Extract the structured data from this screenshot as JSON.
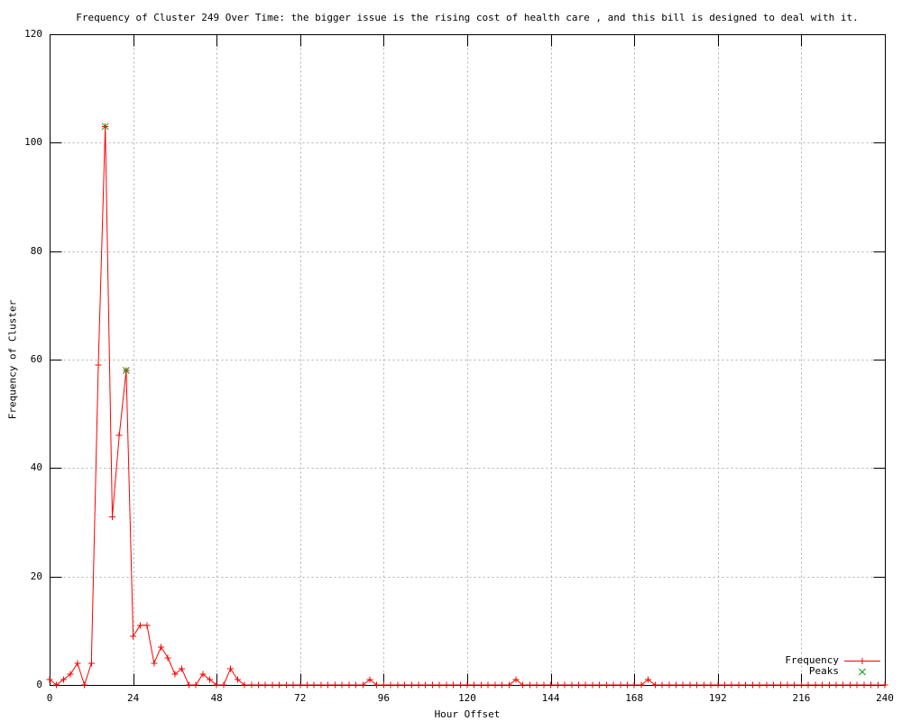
{
  "title": "Frequency of Cluster 249 Over Time: the bigger issue is the rising cost of health care , and this bill is designed to deal with it.",
  "x_axis": {
    "label": "Hour Offset",
    "ticks": [
      0,
      24,
      48,
      72,
      96,
      120,
      144,
      168,
      192,
      216,
      240
    ]
  },
  "y_axis": {
    "label": "Frequency of Cluster",
    "ticks": [
      0,
      20,
      40,
      60,
      80,
      100,
      120
    ]
  },
  "legend": [
    {
      "label": "Frequency",
      "color": "#ff0000",
      "marker": "plus-line"
    },
    {
      "label": "Peaks",
      "color": "#00a000",
      "marker": "cross"
    }
  ],
  "chart_data": {
    "type": "line",
    "title": "Frequency of Cluster 249 Over Time: the bigger issue is the rising cost of health care , and this bill is designed to deal with it.",
    "xlabel": "Hour Offset",
    "ylabel": "Frequency of Cluster",
    "xlim": [
      0,
      240
    ],
    "ylim": [
      0,
      120
    ],
    "grid": true,
    "grid_color": "#b0b0b0",
    "legend_position": "bottom-right",
    "series": [
      {
        "name": "Frequency",
        "style": "linespoints",
        "marker": "+",
        "color": "#ff0000",
        "x": [
          0,
          2,
          4,
          6,
          8,
          10,
          12,
          14,
          16,
          18,
          20,
          22,
          24,
          26,
          28,
          30,
          32,
          34,
          36,
          38,
          40,
          42,
          44,
          46,
          48,
          50,
          52,
          54,
          56,
          58,
          60,
          62,
          64,
          66,
          68,
          70,
          72,
          74,
          76,
          78,
          80,
          82,
          84,
          86,
          88,
          90,
          92,
          94,
          96,
          98,
          100,
          102,
          104,
          106,
          108,
          110,
          112,
          114,
          116,
          118,
          120,
          122,
          124,
          126,
          128,
          130,
          132,
          134,
          136,
          138,
          140,
          142,
          144,
          146,
          148,
          150,
          152,
          154,
          156,
          158,
          160,
          162,
          164,
          166,
          168,
          170,
          172,
          174,
          176,
          178,
          180,
          182,
          184,
          186,
          188,
          190,
          192,
          194,
          196,
          198,
          200,
          202,
          204,
          206,
          208,
          210,
          212,
          214,
          216,
          218,
          220,
          222,
          224,
          226,
          228,
          230,
          232,
          234,
          236,
          238,
          240
        ],
        "y": [
          1,
          0,
          1,
          2,
          4,
          0,
          4,
          59,
          103,
          31,
          46,
          58,
          9,
          11,
          11,
          4,
          7,
          5,
          2,
          3,
          0,
          0,
          2,
          1,
          0,
          0,
          3,
          1,
          0,
          0,
          0,
          0,
          0,
          0,
          0,
          0,
          0,
          0,
          0,
          0,
          0,
          0,
          0,
          0,
          0,
          0,
          1,
          0,
          0,
          0,
          0,
          0,
          0,
          0,
          0,
          0,
          0,
          0,
          0,
          0,
          0,
          0,
          0,
          0,
          0,
          0,
          0,
          1,
          0,
          0,
          0,
          0,
          0,
          0,
          0,
          0,
          0,
          0,
          0,
          0,
          0,
          0,
          0,
          0,
          0,
          0,
          1,
          0,
          0,
          0,
          0,
          0,
          0,
          0,
          0,
          0,
          0,
          0,
          0,
          0,
          0,
          0,
          0,
          0,
          0,
          0,
          0,
          0,
          0,
          0,
          0,
          0,
          0,
          0,
          0,
          0,
          0,
          0,
          0,
          0,
          0
        ]
      },
      {
        "name": "Peaks",
        "style": "points",
        "marker": "x",
        "color": "#00a000",
        "x": [
          16,
          22
        ],
        "y": [
          103,
          58
        ]
      }
    ]
  }
}
